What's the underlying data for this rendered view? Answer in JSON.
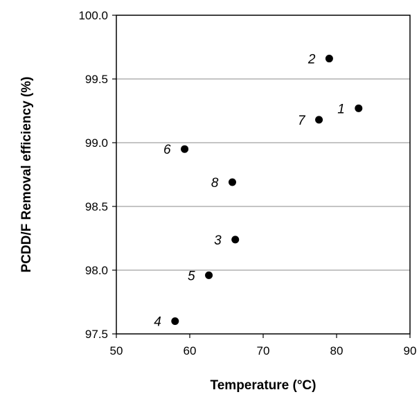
{
  "chart_data": {
    "type": "scatter",
    "title": "",
    "xlabel": "Temperature (°C)",
    "ylabel": "PCDD/F Removal efficiency (%)",
    "xlim": [
      50,
      90
    ],
    "ylim": [
      97.5,
      100.0
    ],
    "x_ticks": [
      "50",
      "60",
      "70",
      "80",
      "90"
    ],
    "y_ticks": [
      "97.5",
      "98.0",
      "98.5",
      "99.0",
      "99.5",
      "100.0"
    ],
    "grid": "horizontal",
    "legend": "none",
    "marker_color": "#000000",
    "points": [
      {
        "label": "1",
        "x": 83.0,
        "y": 99.27
      },
      {
        "label": "2",
        "x": 79.0,
        "y": 99.66
      },
      {
        "label": "3",
        "x": 66.2,
        "y": 98.24
      },
      {
        "label": "4",
        "x": 58.0,
        "y": 97.6
      },
      {
        "label": "5",
        "x": 62.6,
        "y": 97.96
      },
      {
        "label": "6",
        "x": 59.3,
        "y": 98.95
      },
      {
        "label": "7",
        "x": 77.6,
        "y": 99.18
      },
      {
        "label": "8",
        "x": 65.8,
        "y": 98.69
      }
    ]
  }
}
